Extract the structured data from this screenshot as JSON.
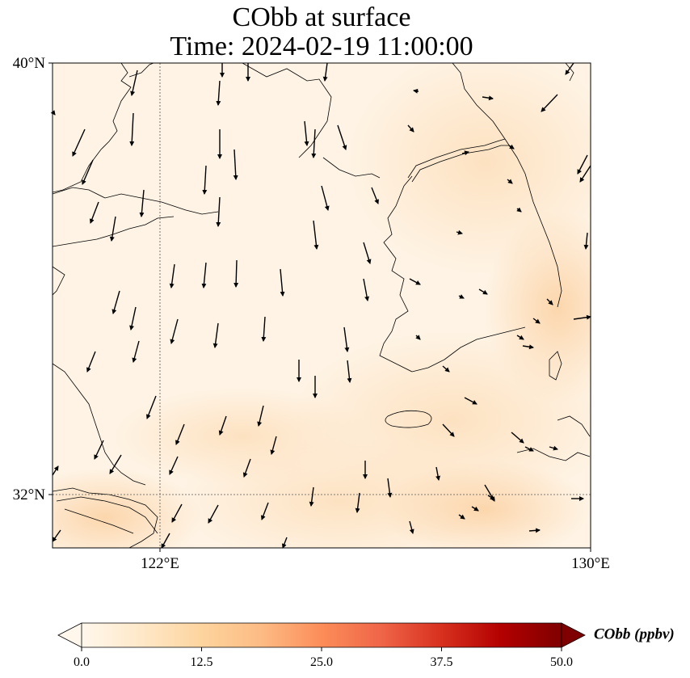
{
  "title": {
    "line1": "CObb at surface",
    "line2": "Time: 2024-02-19 11:00:00"
  },
  "axes": {
    "lat_labels": [
      "40°N",
      "32°N"
    ],
    "lon_labels": [
      "122°E",
      "130°E"
    ],
    "lon_range": [
      120,
      130
    ],
    "lat_range": [
      31,
      40
    ],
    "gridlines": "dotted at 122°E and 32°N"
  },
  "colorbar": {
    "title": "CObb (ppbv)",
    "ticks": [
      "0.0",
      "12.5",
      "25.0",
      "37.5",
      "50.0"
    ],
    "range": [
      0,
      50
    ],
    "extend": "both",
    "colormap": "OrRd",
    "colors": [
      "#fff7ec",
      "#fee8c8",
      "#fdd49e",
      "#fdbb84",
      "#fc8d59",
      "#ef6548",
      "#d7301f",
      "#b30000",
      "#7f0000"
    ]
  },
  "field": {
    "background_color": "#fef2e2",
    "note_colors": {
      "low": "#fff5e8",
      "mid": "#fde3c4",
      "high": "#fcd5ab"
    }
  },
  "wind_vectors_color": "#000000",
  "coastline_color": "#000000"
}
